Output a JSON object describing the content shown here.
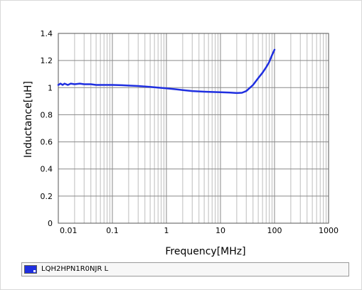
{
  "chart_data": {
    "type": "line",
    "title": "",
    "xlabel": "Frequency[MHz]",
    "ylabel": "Inductance[uH]",
    "x_scale": "log",
    "xlim": [
      0.01,
      1000
    ],
    "ylim": [
      0,
      1.4
    ],
    "x_tick_labels": [
      "0.01",
      "0.1",
      "1",
      "10",
      "100",
      "1000"
    ],
    "x_ticks": [
      0.01,
      0.1,
      1,
      10,
      100,
      1000
    ],
    "y_tick_labels": [
      "0",
      "0.2",
      "0.4",
      "0.6",
      "0.8",
      "1",
      "1.2",
      "1.4"
    ],
    "y_ticks": [
      0,
      0.2,
      0.4,
      0.6,
      0.8,
      1.0,
      1.2,
      1.4
    ],
    "grid": true,
    "legend_position": "bottom",
    "series": [
      {
        "name": "LQH2HPN1R0NJR  L",
        "color": "#1f2fe0",
        "x": [
          0.01,
          0.011,
          0.012,
          0.013,
          0.015,
          0.017,
          0.02,
          0.025,
          0.03,
          0.04,
          0.05,
          0.07,
          0.1,
          0.15,
          0.2,
          0.3,
          0.5,
          0.7,
          1,
          1.5,
          2,
          3,
          5,
          7,
          10,
          15,
          20,
          25,
          30,
          40,
          50,
          60,
          70,
          80,
          90,
          100
        ],
        "y": [
          1.02,
          1.03,
          1.02,
          1.03,
          1.02,
          1.03,
          1.025,
          1.03,
          1.025,
          1.025,
          1.02,
          1.02,
          1.02,
          1.018,
          1.015,
          1.012,
          1.005,
          1.0,
          0.995,
          0.988,
          0.982,
          0.975,
          0.97,
          0.968,
          0.966,
          0.963,
          0.96,
          0.962,
          0.975,
          1.02,
          1.07,
          1.11,
          1.15,
          1.19,
          1.24,
          1.28
        ]
      }
    ]
  }
}
